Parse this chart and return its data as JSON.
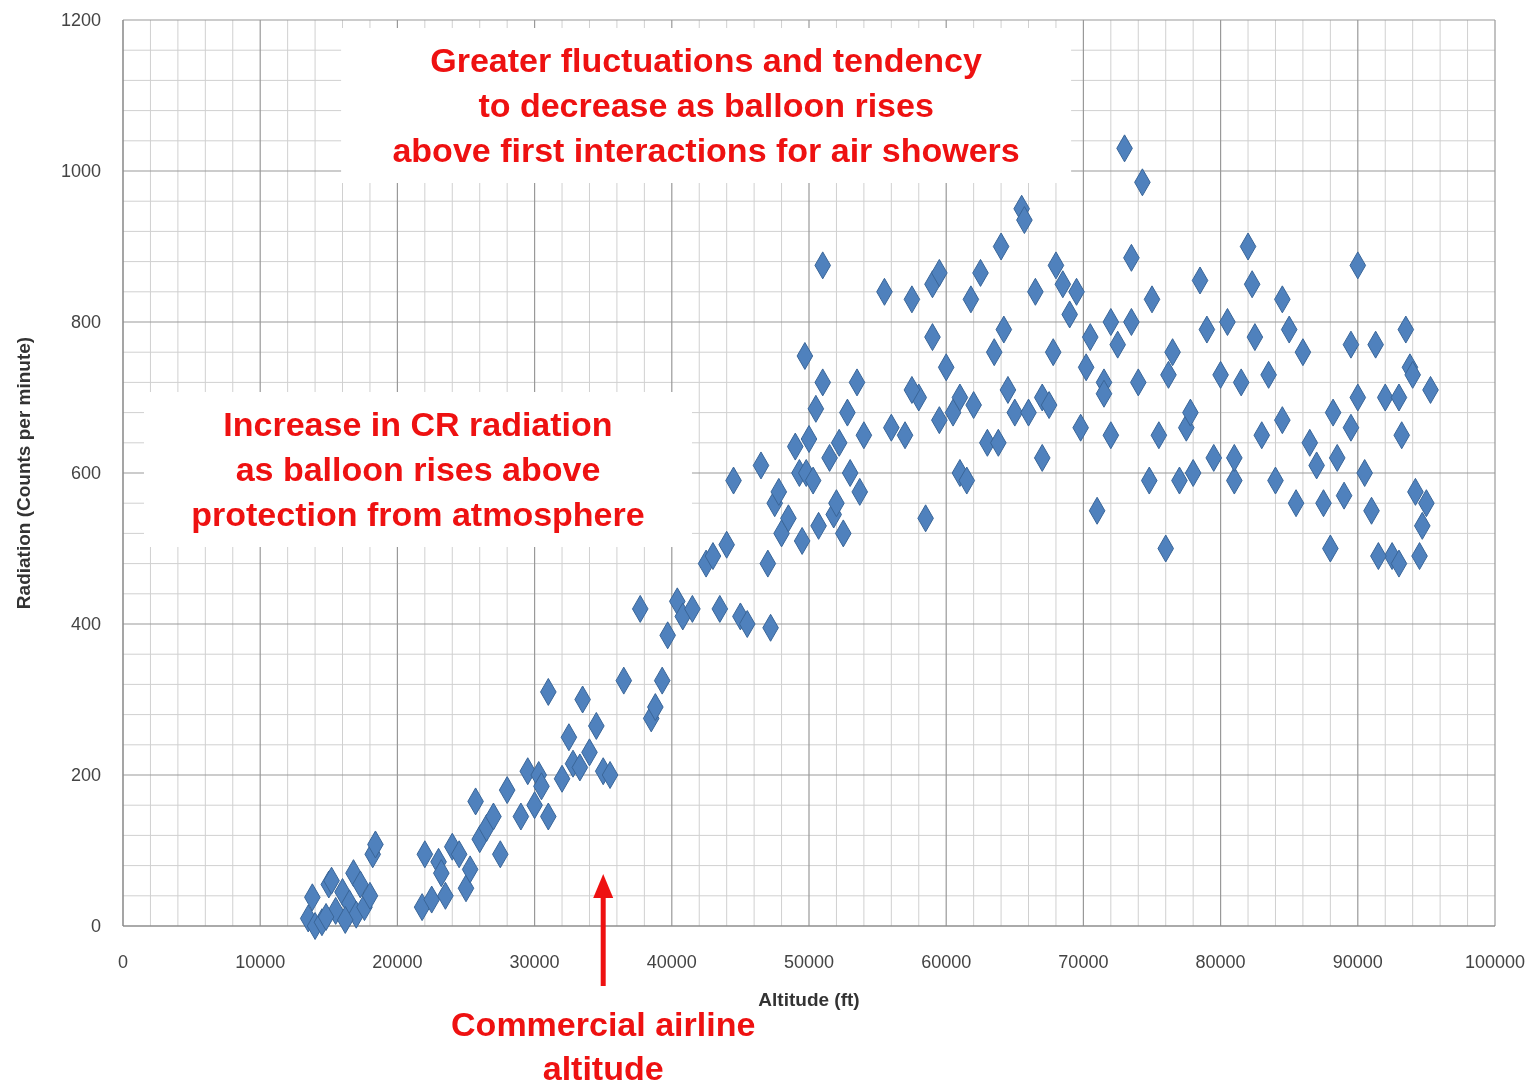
{
  "chart_data": {
    "type": "scatter",
    "xlabel": "Altitude (ft)",
    "ylabel": "Radiation (Counts per minute)",
    "xlim": [
      0,
      100000
    ],
    "xticks": [
      0,
      10000,
      20000,
      30000,
      40000,
      50000,
      60000,
      70000,
      80000,
      90000,
      100000
    ],
    "ylim": [
      0,
      1200
    ],
    "yticks": [
      0,
      200,
      400,
      600,
      800,
      1000,
      1200
    ],
    "grid": true,
    "marker": "diamond",
    "annotations": [
      "Greater fluctuations and tendency\nto decrease as balloon rises\nabove first interactions for air showers",
      "Increase in CR radiation\nas balloon rises above\nprotection from atmosphere",
      {
        "text": "Commercial airline\naltitude",
        "x": 35000
      }
    ],
    "series": [
      {
        "color": "#4f81bd",
        "x": [
          13500,
          13800,
          14000,
          14500,
          15000,
          15200,
          15500,
          16000,
          16500,
          16800,
          17000,
          17300,
          17600,
          18000,
          18200,
          18400,
          14800,
          16200,
          21800,
          22000,
          22500,
          23000,
          23500,
          24000,
          24500,
          25000,
          25300,
          25700,
          26000,
          26500,
          27000,
          27500,
          28000,
          23200,
          29000,
          29500,
          30000,
          30300,
          30500,
          31000,
          31000,
          32000,
          32500,
          32800,
          33300,
          33500,
          34000,
          34500,
          35000,
          35500,
          36500,
          37700,
          38500,
          38800,
          39300,
          39700,
          40400,
          40800,
          41500,
          42500,
          43000,
          43500,
          44000,
          44500,
          45000,
          45500,
          46500,
          47000,
          47200,
          47500,
          47800,
          48000,
          48500,
          49000,
          49300,
          49500,
          49800,
          50000,
          50300,
          50700,
          51000,
          51000,
          51500,
          51800,
          52000,
          52500,
          52800,
          53000,
          53500,
          53700,
          54000,
          49700,
          50500,
          52200,
          55500,
          56000,
          57000,
          57500,
          58000,
          58500,
          59000,
          59000,
          59500,
          60000,
          60500,
          61000,
          61500,
          61800,
          62000,
          62500,
          63000,
          63500,
          64000,
          64200,
          64500,
          65000,
          65500,
          65700,
          66000,
          63800,
          61000,
          59500,
          57500,
          66500,
          67000,
          67000,
          67800,
          68000,
          68500,
          69000,
          69500,
          69800,
          70200,
          70500,
          71000,
          71500,
          72000,
          72000,
          72500,
          73000,
          73500,
          74000,
          74300,
          74800,
          75000,
          75500,
          76000,
          76200,
          76500,
          67500,
          73500,
          71500,
          77000,
          77500,
          78000,
          78500,
          79000,
          79500,
          80000,
          80500,
          81000,
          81500,
          82000,
          82300,
          82500,
          83000,
          83500,
          84000,
          84500,
          85000,
          85500,
          86000,
          77800,
          81000,
          84500,
          86500,
          87000,
          87500,
          88000,
          88200,
          88500,
          89000,
          89500,
          89500,
          90000,
          90000,
          90500,
          91000,
          91300,
          92000,
          92500,
          93000,
          93000,
          93200,
          93500,
          93800,
          94000,
          94200,
          94500,
          94700,
          95000,
          95300,
          91500
        ],
        "values": [
          10,
          38,
          0,
          5,
          55,
          60,
          20,
          45,
          30,
          70,
          15,
          55,
          25,
          40,
          95,
          108,
          12,
          8,
          25,
          95,
          35,
          85,
          40,
          105,
          95,
          50,
          75,
          165,
          115,
          130,
          145,
          95,
          180,
          70,
          145,
          205,
          160,
          200,
          185,
          145,
          310,
          195,
          250,
          215,
          210,
          300,
          230,
          265,
          205,
          200,
          325,
          420,
          275,
          290,
          325,
          385,
          430,
          410,
          420,
          480,
          490,
          420,
          505,
          590,
          410,
          400,
          610,
          480,
          395,
          560,
          575,
          520,
          540,
          635,
          600,
          510,
          600,
          645,
          590,
          530,
          720,
          875,
          620,
          545,
          560,
          520,
          680,
          600,
          720,
          575,
          650,
          755,
          685,
          640,
          840,
          660,
          650,
          830,
          700,
          540,
          780,
          850,
          865,
          740,
          680,
          600,
          590,
          830,
          690,
          865,
          640,
          760,
          900,
          790,
          710,
          680,
          950,
          935,
          680,
          640,
          700,
          670,
          710,
          840,
          700,
          620,
          760,
          875,
          850,
          810,
          840,
          660,
          740,
          780,
          550,
          720,
          650,
          800,
          770,
          1030,
          885,
          720,
          985,
          590,
          830,
          650,
          500,
          730,
          760,
          690,
          800,
          705,
          590,
          660,
          600,
          855,
          790,
          620,
          730,
          800,
          590,
          720,
          900,
          850,
          780,
          650,
          730,
          590,
          830,
          790,
          560,
          760,
          680,
          620,
          670,
          640,
          610,
          560,
          500,
          680,
          620,
          570,
          770,
          660,
          875,
          700,
          600,
          550,
          770,
          700,
          490,
          480,
          700,
          650,
          790,
          740,
          730,
          575,
          490,
          530,
          560,
          710,
          490
        ]
      }
    ]
  }
}
